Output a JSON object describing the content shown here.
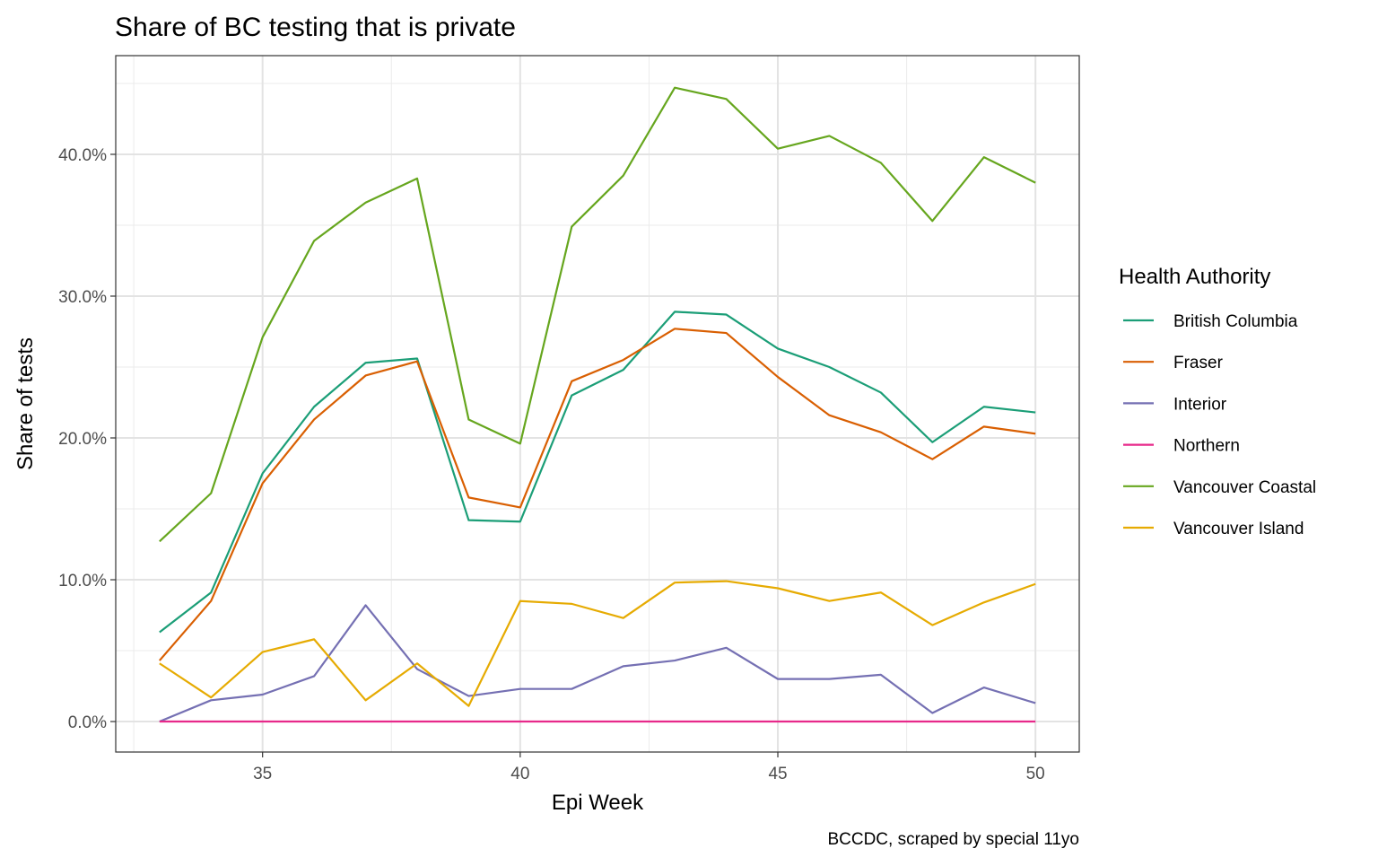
{
  "chart_data": {
    "type": "line",
    "title": "Share of BC testing that is private",
    "xlabel": "Epi Week",
    "ylabel": "Share of tests",
    "caption": "BCCDC, scraped by special 11yo",
    "legend_title": "Health Authority",
    "legend_position": "right",
    "grid": true,
    "xlim": [
      32.15,
      50.85
    ],
    "ylim": [
      -2.15,
      46.96
    ],
    "x_ticks": [
      35,
      40,
      45,
      50
    ],
    "x_tick_labels": [
      "35",
      "40",
      "45",
      "50"
    ],
    "y_ticks": [
      0,
      10,
      20,
      30,
      40
    ],
    "y_tick_labels": [
      "0.0%",
      "10.0%",
      "20.0%",
      "30.0%",
      "40.0%"
    ],
    "x": [
      33,
      34,
      35,
      36,
      37,
      38,
      39,
      40,
      41,
      42,
      43,
      44,
      45,
      46,
      47,
      48,
      49,
      50
    ],
    "series": [
      {
        "name": "British Columbia",
        "color": "#1B9E77",
        "values": [
          6.3,
          9.1,
          17.5,
          22.2,
          25.3,
          25.6,
          14.2,
          14.1,
          23.0,
          24.8,
          28.9,
          28.7,
          26.3,
          25.0,
          23.2,
          19.7,
          22.2,
          21.8
        ]
      },
      {
        "name": "Fraser",
        "color": "#D95F02",
        "values": [
          4.3,
          8.5,
          16.8,
          21.3,
          24.4,
          25.4,
          15.8,
          15.1,
          24.0,
          25.5,
          27.7,
          27.4,
          24.3,
          21.6,
          20.4,
          18.5,
          20.8,
          20.3
        ]
      },
      {
        "name": "Interior",
        "color": "#7570B3",
        "values": [
          0.0,
          1.5,
          1.9,
          3.2,
          8.2,
          3.7,
          1.8,
          2.3,
          2.3,
          3.9,
          4.3,
          5.2,
          3.0,
          3.0,
          3.3,
          0.6,
          2.4,
          1.3
        ]
      },
      {
        "name": "Northern",
        "color": "#E7298A",
        "values": [
          0,
          0,
          0,
          0,
          0,
          0,
          0,
          0,
          0,
          0,
          0,
          0,
          0,
          0,
          0,
          0,
          0,
          0
        ]
      },
      {
        "name": "Vancouver Coastal",
        "color": "#66A61E",
        "values": [
          12.7,
          16.1,
          27.1,
          33.9,
          36.6,
          38.3,
          21.3,
          19.6,
          34.9,
          38.5,
          44.7,
          43.9,
          40.4,
          41.3,
          39.4,
          35.3,
          39.8,
          38.0
        ]
      },
      {
        "name": "Vancouver Island",
        "color": "#E6AB02",
        "values": [
          4.1,
          1.7,
          4.9,
          5.8,
          1.5,
          4.1,
          1.1,
          8.5,
          8.3,
          7.3,
          9.8,
          9.9,
          9.4,
          8.5,
          9.1,
          6.8,
          8.4,
          9.7
        ]
      }
    ]
  }
}
